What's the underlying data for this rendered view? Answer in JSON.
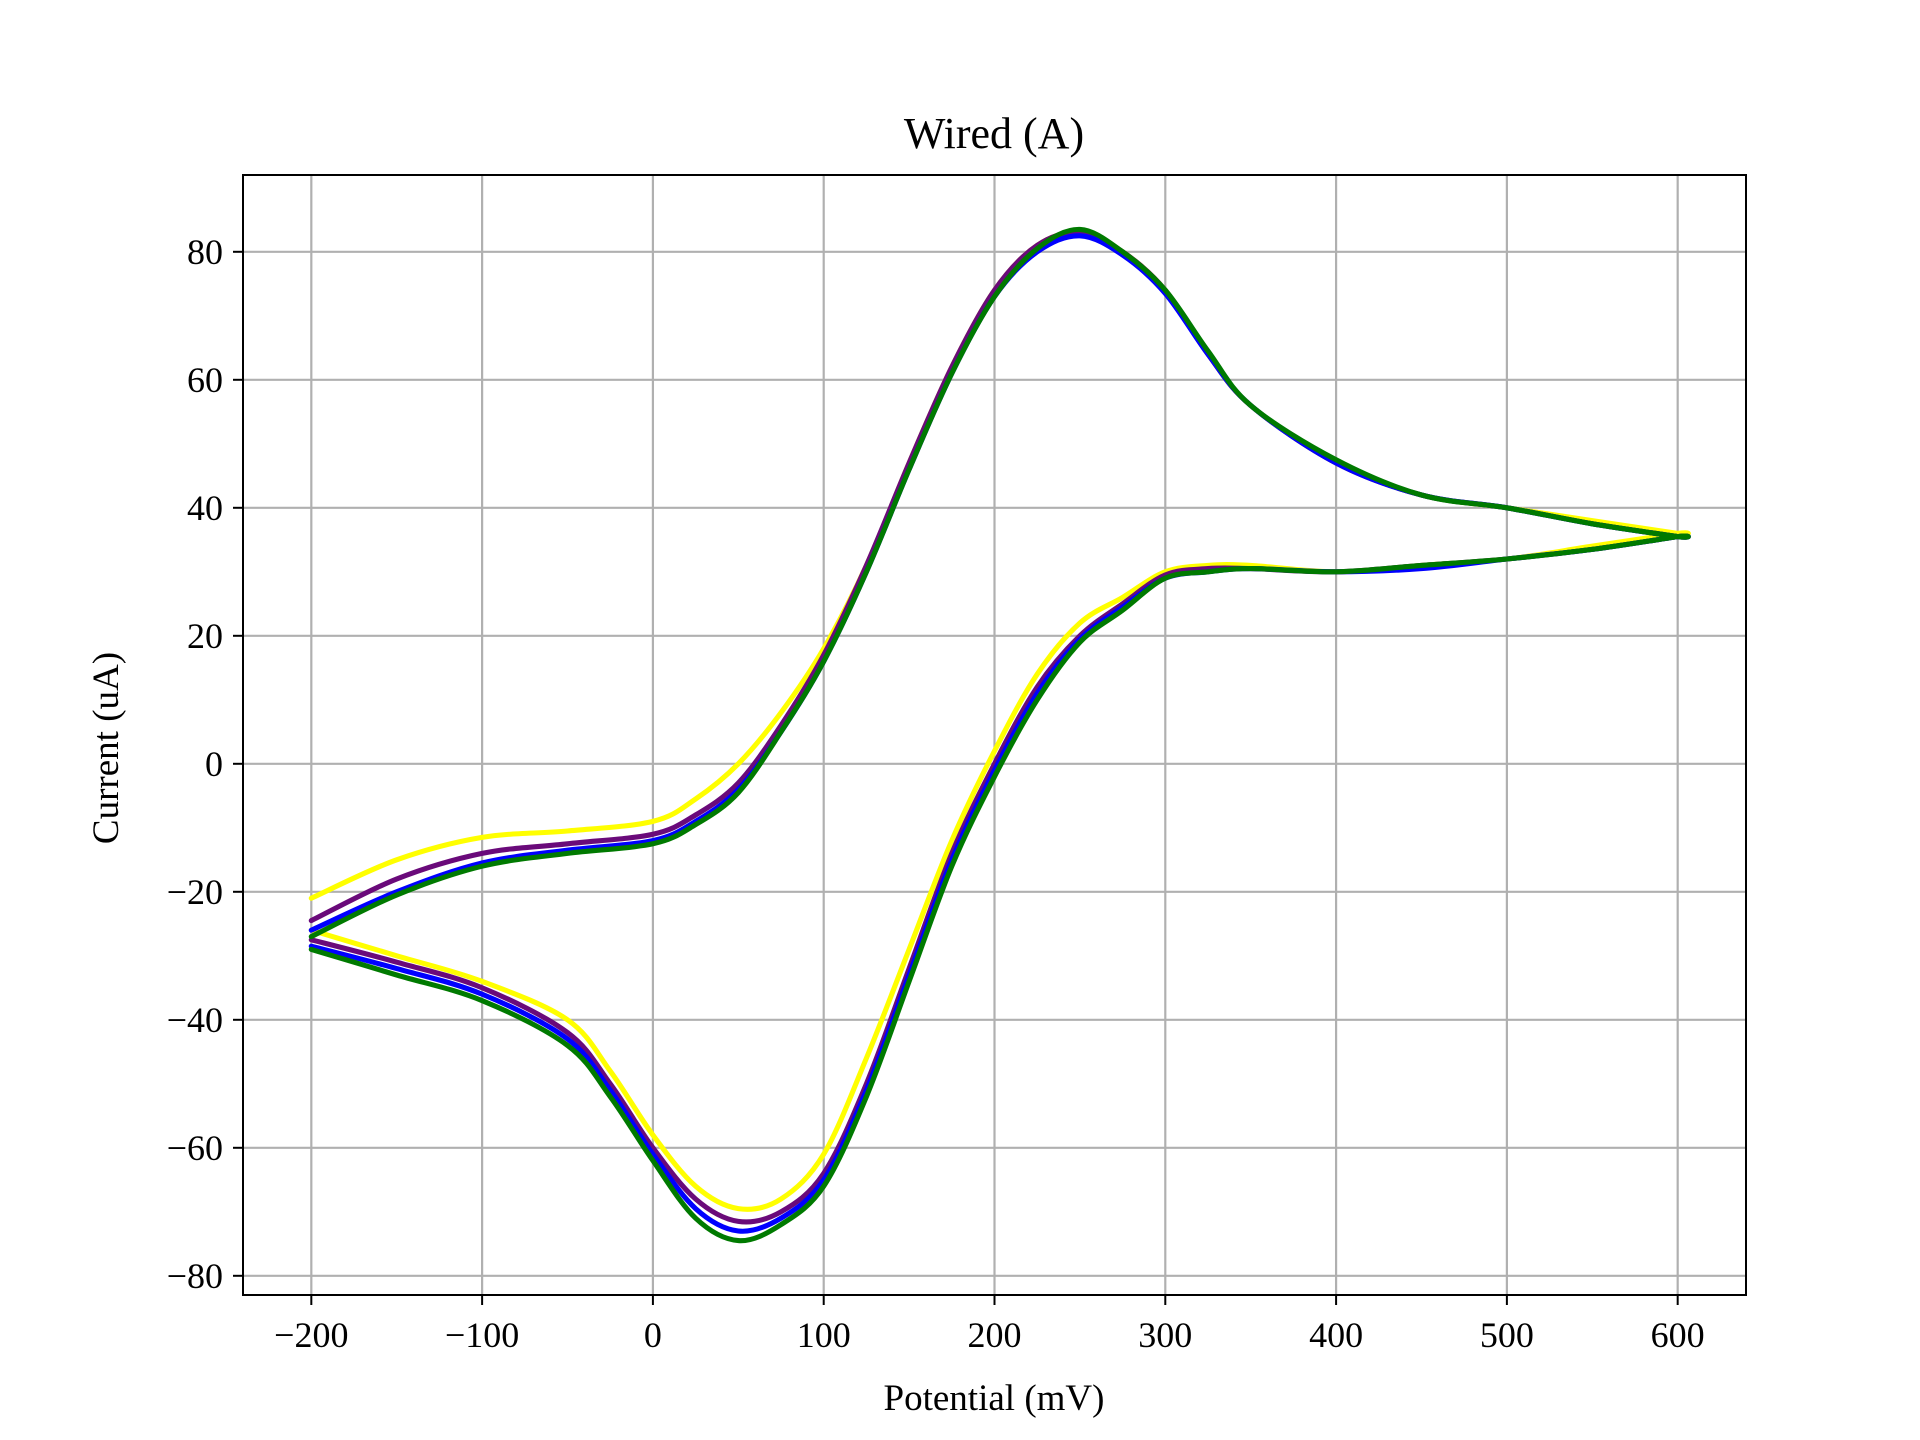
{
  "chart_data": {
    "type": "line",
    "title": "Wired (A)",
    "xlabel": "Potential (mV)",
    "ylabel": "Current (uA)",
    "xlim": [
      -240,
      640
    ],
    "ylim": [
      -83,
      92
    ],
    "xticks": [
      -200,
      -100,
      0,
      100,
      200,
      300,
      400,
      500,
      600
    ],
    "yticks": [
      -80,
      -60,
      -40,
      -20,
      0,
      20,
      40,
      60,
      80
    ],
    "xtick_labels": [
      "−200",
      "−100",
      "0",
      "100",
      "200",
      "300",
      "400",
      "500",
      "600"
    ],
    "ytick_labels": [
      "−80",
      "−60",
      "−40",
      "−20",
      "0",
      "20",
      "40",
      "60",
      "80"
    ],
    "grid": true,
    "legend": false,
    "series": [
      {
        "color": "#ffff00",
        "x": [
          -200,
          -150,
          -100,
          -50,
          0,
          25,
          50,
          75,
          100,
          125,
          150,
          175,
          200,
          225,
          250,
          275,
          300,
          325,
          350,
          400,
          450,
          500,
          550,
          600,
          600,
          550,
          500,
          450,
          400,
          350,
          325,
          300,
          275,
          250,
          225,
          200,
          175,
          150,
          125,
          100,
          75,
          50,
          25,
          0,
          -25,
          -50,
          -100,
          -150,
          -200
        ],
        "y": [
          -21,
          -15,
          -11.5,
          -10.5,
          -9,
          -5.5,
          0,
          8,
          18,
          31,
          47,
          62,
          74,
          81,
          83,
          80,
          74,
          64,
          56,
          47,
          42,
          40,
          38,
          36,
          36,
          34,
          32,
          31,
          30,
          31,
          31,
          30,
          26,
          22,
          14,
          2,
          -12,
          -29,
          -46,
          -61,
          -68,
          -69.5,
          -66,
          -58,
          -48,
          -40,
          -34,
          -30,
          -26
        ],
        "linewidth": 3
      },
      {
        "color": "#6a0a7a",
        "x": [
          -200,
          -150,
          -100,
          -50,
          0,
          25,
          50,
          75,
          100,
          125,
          150,
          175,
          200,
          225,
          250,
          275,
          300,
          325,
          350,
          400,
          450,
          500,
          550,
          600,
          600,
          550,
          500,
          450,
          400,
          350,
          325,
          300,
          275,
          250,
          225,
          200,
          175,
          150,
          125,
          100,
          75,
          50,
          25,
          0,
          -25,
          -50,
          -100,
          -150,
          -200
        ],
        "y": [
          -24.5,
          -18,
          -14,
          -12.5,
          -11,
          -8,
          -3,
          6,
          17,
          31,
          47,
          62,
          74,
          81,
          83,
          80,
          74,
          64,
          56,
          47,
          42,
          40,
          37.5,
          35.5,
          35.5,
          33.5,
          32,
          31,
          30,
          30.5,
          30.5,
          29.5,
          25,
          20,
          12,
          0,
          -14,
          -32,
          -50,
          -64,
          -70,
          -71.5,
          -68,
          -60,
          -50,
          -42,
          -35,
          -31,
          -27.5
        ],
        "linewidth": 3
      },
      {
        "color": "#0000ff",
        "x": [
          -200,
          -150,
          -100,
          -50,
          0,
          25,
          50,
          75,
          100,
          125,
          150,
          175,
          200,
          225,
          250,
          275,
          300,
          325,
          350,
          400,
          450,
          500,
          550,
          600,
          600,
          550,
          500,
          450,
          400,
          350,
          325,
          300,
          275,
          250,
          225,
          200,
          175,
          150,
          125,
          100,
          75,
          50,
          25,
          0,
          -25,
          -50,
          -100,
          -150,
          -200
        ],
        "y": [
          -26,
          -20,
          -15.5,
          -13.5,
          -12,
          -9,
          -4,
          5,
          16,
          30,
          46,
          61,
          73,
          80,
          82.5,
          79.5,
          73.5,
          64,
          56,
          47,
          42,
          40,
          37.5,
          35.5,
          35.5,
          33.5,
          32,
          30.5,
          30,
          30.5,
          30,
          29,
          24.5,
          19.5,
          11,
          -1,
          -15,
          -33,
          -51,
          -65,
          -71,
          -73,
          -69.5,
          -61,
          -51,
          -43,
          -36,
          -32,
          -28.5
        ],
        "linewidth": 3
      },
      {
        "color": "#007a00",
        "x": [
          -200,
          -150,
          -100,
          -50,
          0,
          25,
          50,
          75,
          100,
          125,
          150,
          175,
          200,
          225,
          250,
          275,
          300,
          325,
          350,
          400,
          450,
          500,
          550,
          600,
          600,
          550,
          500,
          450,
          400,
          350,
          325,
          300,
          275,
          250,
          225,
          200,
          175,
          150,
          125,
          100,
          75,
          50,
          25,
          0,
          -25,
          -50,
          -100,
          -150,
          -200
        ],
        "y": [
          -27,
          -20.5,
          -16,
          -14,
          -12.5,
          -9.5,
          -4.5,
          5,
          16,
          30,
          46,
          61,
          73,
          80.5,
          83.5,
          80,
          74,
          64.5,
          56,
          47.5,
          42,
          40,
          37.5,
          35.5,
          35.5,
          33.5,
          32,
          31,
          30,
          30.5,
          30,
          29,
          24,
          19,
          10,
          -2,
          -16,
          -34,
          -52,
          -66,
          -72,
          -74.5,
          -71,
          -62,
          -52,
          -44,
          -37,
          -33,
          -29
        ],
        "linewidth": 3
      }
    ]
  }
}
